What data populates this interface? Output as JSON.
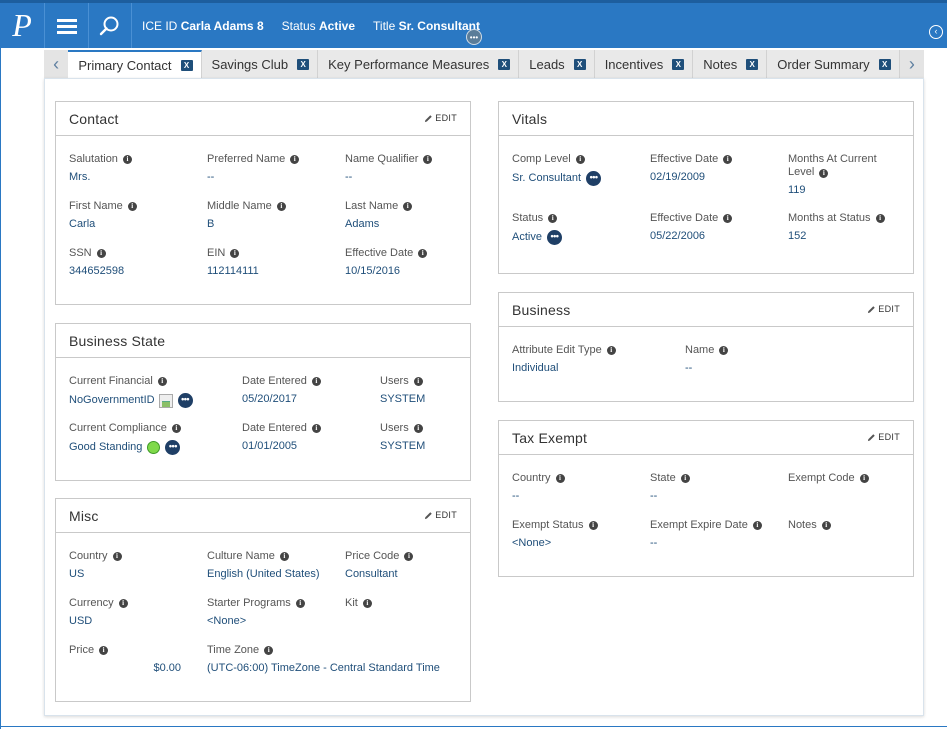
{
  "header": {
    "logo_text": "P",
    "ice_id_label": "ICE ID",
    "ice_id_value": "Carla Adams 8",
    "status_label": "Status",
    "status_value": "Active",
    "title_label": "Title",
    "title_value": "Sr. Consultant",
    "dots_glyph": "•••",
    "right_icon_glyph": "‹"
  },
  "tabs": {
    "left_arrow": "‹",
    "right_arrow": "›",
    "close_glyph": "X",
    "items": [
      {
        "label": "Primary Contact",
        "active": true
      },
      {
        "label": "Savings Club"
      },
      {
        "label": "Key Performance Measures"
      },
      {
        "label": "Leads"
      },
      {
        "label": "Incentives"
      },
      {
        "label": "Notes"
      },
      {
        "label": "Order Summary"
      }
    ]
  },
  "common": {
    "edit_label": "EDIT",
    "info_glyph": "i",
    "dots_glyph": "•••"
  },
  "contact": {
    "title": "Contact",
    "fields": [
      {
        "label": "Salutation",
        "value": "Mrs."
      },
      {
        "label": "Preferred Name",
        "value": "--"
      },
      {
        "label": "Name Qualifier",
        "value": "--"
      },
      {
        "label": "First Name",
        "value": "Carla"
      },
      {
        "label": "Middle Name",
        "value": "B"
      },
      {
        "label": "Last Name",
        "value": "Adams"
      },
      {
        "label": "SSN",
        "value": "344652598"
      },
      {
        "label": "EIN",
        "value": "112114111"
      },
      {
        "label": "Effective Date",
        "value": "10/15/2016"
      }
    ]
  },
  "business_state": {
    "title": "Business State",
    "fields": [
      {
        "label": "Current Financial",
        "value": "NoGovernmentID"
      },
      {
        "label": "Date Entered",
        "value": "05/20/2017"
      },
      {
        "label": "Users",
        "value": "SYSTEM"
      },
      {
        "label": "Current Compliance",
        "value": "Good Standing"
      },
      {
        "label": "Date Entered",
        "value": "01/01/2005"
      },
      {
        "label": "Users",
        "value": "SYSTEM"
      }
    ]
  },
  "misc": {
    "title": "Misc",
    "fields": [
      {
        "label": "Country",
        "value": "US"
      },
      {
        "label": "Culture Name",
        "value": "English (United States)"
      },
      {
        "label": "Price Code",
        "value": "Consultant"
      },
      {
        "label": "Currency",
        "value": "USD"
      },
      {
        "label": "Starter Programs",
        "value": "<None>"
      },
      {
        "label": "Kit",
        "value": ""
      },
      {
        "label": "Price",
        "value": "$0.00"
      },
      {
        "label": "Time Zone",
        "value": "(UTC-06:00) TimeZone - Central Standard Time"
      }
    ]
  },
  "vitals": {
    "title": "Vitals",
    "fields": [
      {
        "label": "Comp Level",
        "value": "Sr. Consultant"
      },
      {
        "label": "Effective Date",
        "value": "02/19/2009"
      },
      {
        "label": "Months At Current Level",
        "value": "119"
      },
      {
        "label": "Status",
        "value": "Active"
      },
      {
        "label": "Effective Date",
        "value": "05/22/2006"
      },
      {
        "label": "Months at Status",
        "value": "152"
      }
    ]
  },
  "business": {
    "title": "Business",
    "fields": [
      {
        "label": "Attribute Edit Type",
        "value": "Individual"
      },
      {
        "label": "Name",
        "value": "--"
      }
    ]
  },
  "tax_exempt": {
    "title": "Tax Exempt",
    "fields": [
      {
        "label": "Country",
        "value": "--"
      },
      {
        "label": "State",
        "value": "--"
      },
      {
        "label": "Exempt Code",
        "value": ""
      },
      {
        "label": "Exempt Status",
        "value": "<None>"
      },
      {
        "label": "Exempt Expire Date",
        "value": "--"
      },
      {
        "label": "Notes",
        "value": ""
      }
    ]
  }
}
